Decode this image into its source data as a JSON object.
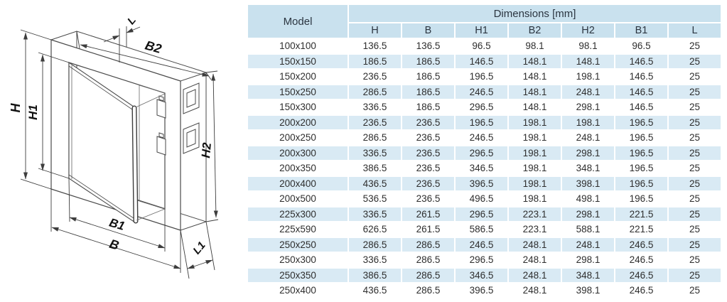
{
  "drawing": {
    "labels": {
      "h": "H",
      "h1": "H1",
      "b2": "B2",
      "l": "L",
      "h2": "H2",
      "b1": "B1",
      "b": "B",
      "l1": "L1"
    }
  },
  "table": {
    "model_header": "Model",
    "dimensions_header": "Dimensions [mm]",
    "columns": [
      "H",
      "B",
      "H1",
      "B2",
      "H2",
      "B1",
      "L"
    ],
    "rows": [
      {
        "model": "100x100",
        "values": [
          "136.5",
          "136.5",
          "96.5",
          "98.1",
          "98.1",
          "96.5",
          "25"
        ]
      },
      {
        "model": "150x150",
        "values": [
          "186.5",
          "186.5",
          "146.5",
          "148.1",
          "148.1",
          "146.5",
          "25"
        ]
      },
      {
        "model": "150x200",
        "values": [
          "236.5",
          "186.5",
          "196.5",
          "148.1",
          "198.1",
          "146.5",
          "25"
        ]
      },
      {
        "model": "150x250",
        "values": [
          "286.5",
          "186.5",
          "246.5",
          "148.1",
          "248.1",
          "146.5",
          "25"
        ]
      },
      {
        "model": "150x300",
        "values": [
          "336.5",
          "186.5",
          "296.5",
          "148.1",
          "298.1",
          "146.5",
          "25"
        ]
      },
      {
        "model": "200x200",
        "values": [
          "236.5",
          "236.5",
          "196.5",
          "198.1",
          "198.1",
          "196.5",
          "25"
        ]
      },
      {
        "model": "200x250",
        "values": [
          "286.5",
          "236.5",
          "246.5",
          "198.1",
          "248.1",
          "196.5",
          "25"
        ]
      },
      {
        "model": "200x300",
        "values": [
          "336.5",
          "236.5",
          "296.5",
          "198.1",
          "298.1",
          "196.5",
          "25"
        ]
      },
      {
        "model": "200x350",
        "values": [
          "386.5",
          "236.5",
          "346.5",
          "198.1",
          "348.1",
          "196.5",
          "25"
        ]
      },
      {
        "model": "200x400",
        "values": [
          "436.5",
          "236.5",
          "396.5",
          "198.1",
          "398.1",
          "196.5",
          "25"
        ]
      },
      {
        "model": "200x500",
        "values": [
          "536.5",
          "236.5",
          "496.5",
          "198.1",
          "498.1",
          "196.5",
          "25"
        ]
      },
      {
        "model": "225x300",
        "values": [
          "336.5",
          "261.5",
          "296.5",
          "223.1",
          "298.1",
          "221.5",
          "25"
        ]
      },
      {
        "model": "225x590",
        "values": [
          "626.5",
          "261.5",
          "586.5",
          "223.1",
          "588.1",
          "221.5",
          "25"
        ]
      },
      {
        "model": "250x250",
        "values": [
          "286.5",
          "286.5",
          "246.5",
          "248.1",
          "248.1",
          "246.5",
          "25"
        ]
      },
      {
        "model": "250x300",
        "values": [
          "336.5",
          "286.5",
          "296.5",
          "248.1",
          "298.1",
          "246.5",
          "25"
        ]
      },
      {
        "model": "250x350",
        "values": [
          "386.5",
          "286.5",
          "346.5",
          "248.1",
          "348.1",
          "246.5",
          "25"
        ]
      },
      {
        "model": "250x400",
        "values": [
          "436.5",
          "286.5",
          "396.5",
          "248.1",
          "398.1",
          "246.5",
          "25"
        ]
      }
    ]
  },
  "colors": {
    "header_blue": "#c9e1ee",
    "stripe_blue": "#d9eaf4"
  }
}
